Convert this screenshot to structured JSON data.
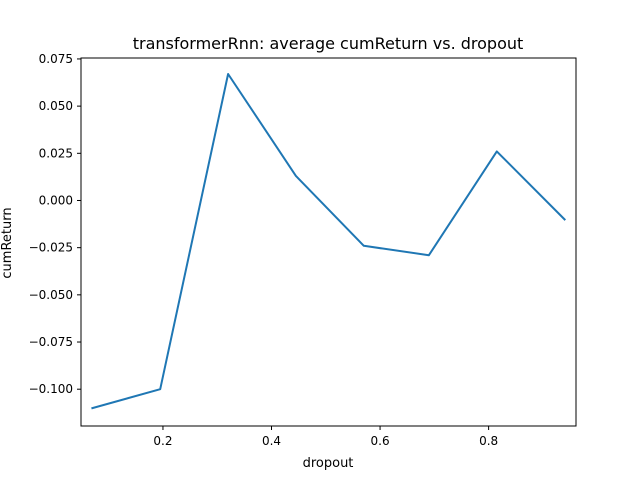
{
  "chart_data": {
    "type": "line",
    "title": "transformerRnn: average cumReturn vs. dropout",
    "xlabel": "dropout",
    "ylabel": "cumReturn",
    "xlim": [
      0.049,
      0.961
    ],
    "ylim": [
      -0.1195,
      0.0755
    ],
    "xticks": [
      0.2,
      0.4,
      0.6,
      0.8
    ],
    "xtick_labels": [
      "0.2",
      "0.4",
      "0.6",
      "0.8"
    ],
    "yticks": [
      0.075,
      0.05,
      0.025,
      0.0,
      -0.025,
      -0.05,
      -0.075,
      -0.1
    ],
    "ytick_labels": [
      "0.075",
      "0.050",
      "0.025",
      "0.000",
      "−0.025",
      "−0.050",
      "−0.075",
      "−0.100"
    ],
    "grid": false,
    "series": [
      {
        "color": "#1f77b4",
        "x": [
          0.07,
          0.195,
          0.32,
          0.445,
          0.57,
          0.69,
          0.815,
          0.94
        ],
        "y": [
          -0.11,
          -0.1,
          0.067,
          0.013,
          -0.024,
          -0.029,
          0.026,
          -0.01
        ]
      }
    ]
  }
}
